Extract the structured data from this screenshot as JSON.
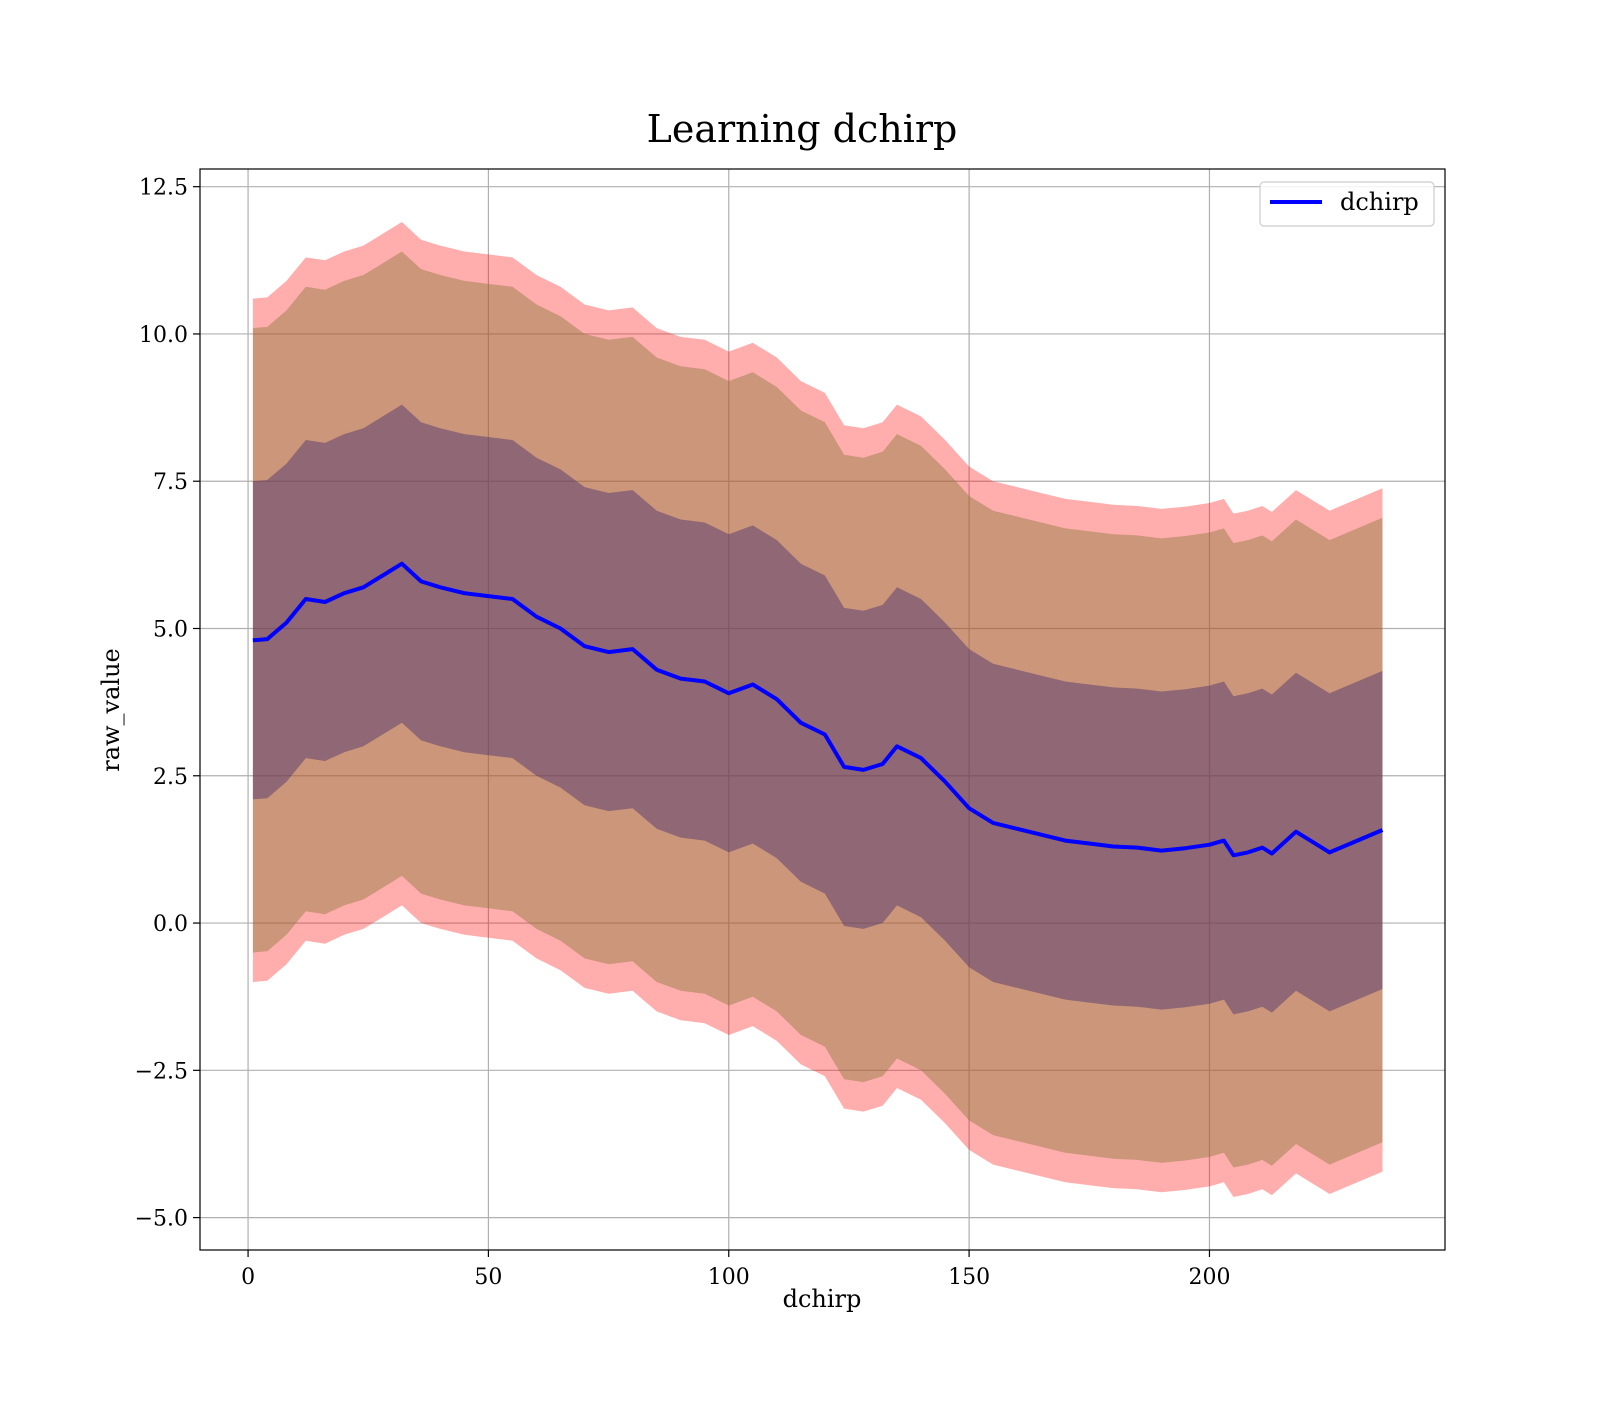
{
  "chart_data": {
    "type": "line",
    "title": "Learning dchirp",
    "xlabel": "dchirp",
    "ylabel": "raw_value",
    "xlim": [
      -10,
      249
    ],
    "ylim": [
      -5.55,
      12.8
    ],
    "grid": true,
    "legend_position": "top-right",
    "x_ticks": [
      0,
      50,
      100,
      150,
      200
    ],
    "x_tick_labels": [
      "0",
      "50",
      "100",
      "150",
      "200"
    ],
    "y_ticks": [
      -5.0,
      -2.5,
      0.0,
      2.5,
      5.0,
      7.5,
      10.0,
      12.5
    ],
    "y_tick_labels": [
      "−5.0",
      "−2.5",
      "0.0",
      "2.5",
      "5.0",
      "7.5",
      "10.0",
      "12.5"
    ],
    "x": [
      1,
      4,
      8,
      12,
      16,
      20,
      24,
      28,
      32,
      36,
      40,
      45,
      50,
      55,
      60,
      65,
      70,
      75,
      80,
      85,
      90,
      95,
      100,
      105,
      110,
      115,
      120,
      124,
      128,
      132,
      135,
      140,
      145,
      150,
      155,
      160,
      165,
      170,
      175,
      180,
      185,
      190,
      195,
      200,
      203,
      205,
      208,
      211,
      213,
      218,
      225,
      236
    ],
    "series": [
      {
        "name": "dchirp",
        "color": "#0000ff",
        "values": [
          4.8,
          4.82,
          5.1,
          5.5,
          5.45,
          5.6,
          5.7,
          5.9,
          6.1,
          5.8,
          5.7,
          5.6,
          5.55,
          5.5,
          5.2,
          5.0,
          4.7,
          4.6,
          4.65,
          4.3,
          4.15,
          4.1,
          3.9,
          4.05,
          3.8,
          3.4,
          3.2,
          2.65,
          2.6,
          2.7,
          3.0,
          2.8,
          2.4,
          1.95,
          1.7,
          1.6,
          1.5,
          1.4,
          1.35,
          1.3,
          1.28,
          1.23,
          1.27,
          1.33,
          1.4,
          1.15,
          1.2,
          1.28,
          1.18,
          1.55,
          1.2,
          1.58
        ]
      }
    ],
    "bands": [
      {
        "color": "#ff0000",
        "alpha": 0.32,
        "offset": 5.8
      },
      {
        "color": "#8b7b3a",
        "alpha": 0.45,
        "offset": 5.3
      },
      {
        "color": "#4a2f6e",
        "alpha": 0.45,
        "offset": 2.7
      }
    ]
  }
}
